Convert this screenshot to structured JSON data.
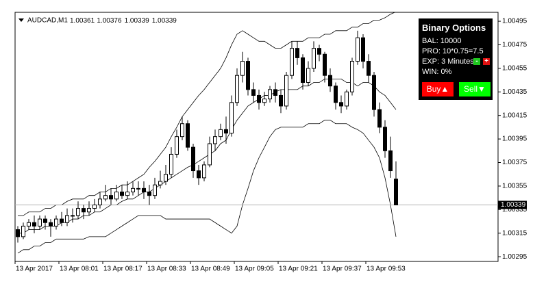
{
  "chart_data": {
    "type": "candlestick",
    "symbol": "AUDCAD,M1",
    "categories": [
      "13 Apr 2017",
      null,
      null,
      null,
      null,
      null,
      null,
      null,
      "13 Apr 08:01",
      null,
      null,
      null,
      null,
      null,
      null,
      null,
      "13 Apr 08:17",
      null,
      null,
      null,
      null,
      null,
      null,
      null,
      "13 Apr 08:33",
      null,
      null,
      null,
      null,
      null,
      null,
      null,
      "13 Apr 08:49",
      null,
      null,
      null,
      null,
      null,
      null,
      null,
      "13 Apr 09:05",
      null,
      null,
      null,
      null,
      null,
      null,
      null,
      "13 Apr 09:21",
      null,
      null,
      null,
      null,
      null,
      null,
      null,
      "13 Apr 09:37",
      null,
      null,
      null,
      null,
      null,
      null,
      null,
      "13 Apr 09:53",
      null,
      null,
      null,
      null,
      null
    ],
    "open": [
      1.00318,
      1.00312,
      1.00321,
      1.00324,
      1.00321,
      1.00327,
      1.00324,
      1.00321,
      1.00327,
      1.00324,
      1.0033,
      1.0033,
      1.00336,
      1.00333,
      1.00336,
      1.00339,
      1.00344,
      1.00347,
      1.00344,
      1.0035,
      1.00347,
      1.0035,
      1.00353,
      1.00353,
      1.0035,
      1.00347,
      1.00356,
      1.00359,
      1.00365,
      1.00382,
      1.00397,
      1.00408,
      1.00388,
      1.00368,
      1.00362,
      1.00373,
      1.00391,
      1.00397,
      1.00403,
      1.004,
      1.00426,
      1.00449,
      1.00461,
      1.00437,
      1.00432,
      1.00426,
      1.00429,
      1.00437,
      1.00432,
      1.00423,
      1.00449,
      1.00472,
      1.00464,
      1.00443,
      1.00455,
      1.00472,
      1.00467,
      1.00449,
      1.0044,
      1.00426,
      1.00423,
      1.00435,
      1.00461,
      1.00481,
      1.00461,
      1.00449,
      1.0042,
      1.00405,
      1.00385,
      1.00361
    ],
    "high": [
      1.00321,
      1.00324,
      1.00327,
      1.0033,
      1.0033,
      1.0033,
      1.00327,
      1.0033,
      1.00333,
      1.00336,
      1.00336,
      1.00342,
      1.00339,
      1.00342,
      1.00344,
      1.0035,
      1.00356,
      1.00353,
      1.00356,
      1.00356,
      1.00359,
      1.00359,
      1.00359,
      1.00359,
      1.00356,
      1.00362,
      1.00368,
      1.00373,
      1.00388,
      1.00403,
      1.00414,
      1.00411,
      1.00391,
      1.00373,
      1.00376,
      1.00397,
      1.00403,
      1.00408,
      1.00414,
      1.00432,
      1.00455,
      1.00469,
      1.00464,
      1.00443,
      1.00437,
      1.00435,
      1.0044,
      1.00443,
      1.00437,
      1.00452,
      1.00478,
      1.00478,
      1.00467,
      1.00461,
      1.00478,
      1.00475,
      1.00469,
      1.00455,
      1.00443,
      1.00432,
      1.00437,
      1.00464,
      1.00487,
      1.00484,
      1.00467,
      1.00452,
      1.00426,
      1.00411,
      1.00397,
      1.00376
    ],
    "low": [
      1.00307,
      1.0031,
      1.00318,
      1.00315,
      1.00318,
      1.00318,
      1.00312,
      1.00318,
      1.00321,
      1.00321,
      1.00324,
      1.00327,
      1.00327,
      1.0033,
      1.00333,
      1.00336,
      1.00342,
      1.00339,
      1.00342,
      1.00344,
      1.00344,
      1.00347,
      1.00347,
      1.00344,
      1.00339,
      1.00344,
      1.00353,
      1.00356,
      1.00362,
      1.00379,
      1.00394,
      1.00385,
      1.00362,
      1.00356,
      1.00359,
      1.00371,
      1.00385,
      1.00394,
      1.00391,
      1.00397,
      1.00423,
      1.00443,
      1.00432,
      1.00426,
      1.0042,
      1.00423,
      1.00426,
      1.00426,
      1.00417,
      1.0042,
      1.00446,
      1.00458,
      1.00437,
      1.0044,
      1.00452,
      1.00461,
      1.00443,
      1.00435,
      1.0042,
      1.00417,
      1.0042,
      1.00432,
      1.00458,
      1.00455,
      1.00443,
      1.00414,
      1.004,
      1.00379,
      1.00362,
      1.00339
    ],
    "close": [
      1.00312,
      1.00321,
      1.00324,
      1.00321,
      1.00327,
      1.00324,
      1.00321,
      1.00327,
      1.00324,
      1.0033,
      1.0033,
      1.00336,
      1.00333,
      1.00336,
      1.00339,
      1.00344,
      1.00347,
      1.00344,
      1.0035,
      1.00347,
      1.0035,
      1.00353,
      1.00353,
      1.0035,
      1.00347,
      1.00356,
      1.00359,
      1.00365,
      1.00382,
      1.00397,
      1.00408,
      1.00388,
      1.00368,
      1.00362,
      1.00373,
      1.00391,
      1.00397,
      1.00403,
      1.004,
      1.00426,
      1.00449,
      1.00461,
      1.00437,
      1.00432,
      1.00426,
      1.00429,
      1.00437,
      1.00432,
      1.00423,
      1.00449,
      1.00472,
      1.00464,
      1.00443,
      1.00455,
      1.00472,
      1.00467,
      1.00449,
      1.0044,
      1.00426,
      1.00423,
      1.00435,
      1.00461,
      1.00481,
      1.00461,
      1.00449,
      1.0042,
      1.00405,
      1.00385,
      1.00368,
      1.00339
    ],
    "band_upper": [
      1.0033,
      1.0033,
      1.00333,
      1.00333,
      1.00333,
      1.00336,
      1.00336,
      1.00339,
      1.00339,
      1.00342,
      1.00344,
      1.00344,
      1.00344,
      1.00347,
      1.00347,
      1.0035,
      1.0035,
      1.00353,
      1.00353,
      1.00356,
      1.00356,
      1.00359,
      1.00362,
      1.00365,
      1.00371,
      1.00376,
      1.00382,
      1.00388,
      1.00397,
      1.00405,
      1.00414,
      1.0042,
      1.00426,
      1.00432,
      1.00437,
      1.00443,
      1.00449,
      1.00455,
      1.00464,
      1.00475,
      1.00484,
      1.00487,
      1.00484,
      1.00481,
      1.00478,
      1.00478,
      1.00475,
      1.00472,
      1.00472,
      1.00475,
      1.00478,
      1.00478,
      1.00478,
      1.00481,
      1.00481,
      1.00481,
      1.00484,
      1.00484,
      1.00487,
      1.00487,
      1.00487,
      1.0049,
      1.0049,
      1.00493,
      1.00493,
      1.00496,
      1.00496,
      1.00498,
      1.00501,
      1.00503
    ],
    "band_middle": [
      1.00315,
      1.00315,
      1.00318,
      1.00318,
      1.00318,
      1.00321,
      1.00321,
      1.00321,
      1.00324,
      1.00324,
      1.00327,
      1.00327,
      1.0033,
      1.0033,
      1.00333,
      1.00333,
      1.00336,
      1.00339,
      1.00339,
      1.00342,
      1.00344,
      1.00344,
      1.00347,
      1.0035,
      1.0035,
      1.00353,
      1.00356,
      1.00359,
      1.00362,
      1.00365,
      1.00368,
      1.00371,
      1.00373,
      1.00376,
      1.00379,
      1.00382,
      1.00385,
      1.00391,
      1.00394,
      1.00403,
      1.00411,
      1.00417,
      1.00423,
      1.00426,
      1.00429,
      1.00432,
      1.00432,
      1.00435,
      1.00437,
      1.00437,
      1.00437,
      1.00437,
      1.0044,
      1.0044,
      1.00443,
      1.00443,
      1.00446,
      1.00446,
      1.00446,
      1.00446,
      1.00443,
      1.00443,
      1.0044,
      1.00443,
      1.00443,
      1.0044,
      1.00435,
      1.00432,
      1.00426,
      1.0042
    ],
    "band_lower": [
      1.00298,
      1.00301,
      1.00301,
      1.00304,
      1.00304,
      1.00307,
      1.00307,
      1.0031,
      1.0031,
      1.0031,
      1.0031,
      1.0031,
      1.0031,
      1.00312,
      1.00312,
      1.00312,
      1.00312,
      1.00315,
      1.00318,
      1.00321,
      1.00324,
      1.00327,
      1.0033,
      1.0033,
      1.0033,
      1.0033,
      1.0033,
      1.00327,
      1.00327,
      1.00327,
      1.00327,
      1.00327,
      1.00327,
      1.00327,
      1.00327,
      1.00327,
      1.00324,
      1.00321,
      1.00318,
      1.00315,
      1.00321,
      1.00339,
      1.00353,
      1.00368,
      1.00379,
      1.00388,
      1.00397,
      1.00403,
      1.00405,
      1.00405,
      1.00405,
      1.00405,
      1.00405,
      1.00408,
      1.00408,
      1.00408,
      1.00411,
      1.00411,
      1.00408,
      1.00408,
      1.00408,
      1.00405,
      1.00403,
      1.004,
      1.00394,
      1.00388,
      1.00379,
      1.00362,
      1.00339,
      1.00312
    ],
    "band_color": "#000000",
    "up_color": "#ffffff",
    "down_color": "#000000",
    "ylim": [
      1.00291,
      1.005026
    ],
    "yticks": [
      1.00295,
      1.00315,
      1.00335,
      1.00355,
      1.00375,
      1.00395,
      1.00415,
      1.00435,
      1.00455,
      1.00475,
      1.00495
    ],
    "grid": false
  },
  "panel": {
    "title": "Binary Options",
    "balance": "BAL: 10000",
    "profit": "PRO: 10*0.75=7.5",
    "expiry": "EXP: 3 Minutes",
    "minus": "-",
    "plus": "+",
    "win": "WIN: 0%",
    "buy": "Buy▲",
    "sell": "Sell▼"
  }
}
